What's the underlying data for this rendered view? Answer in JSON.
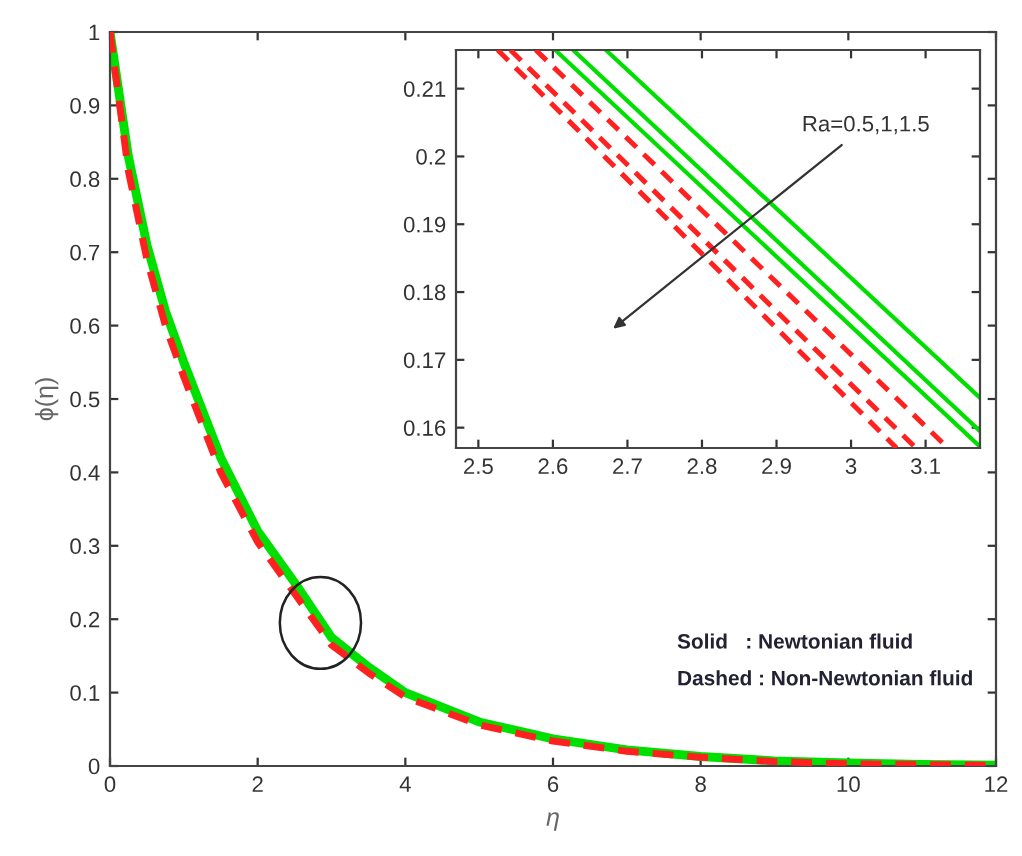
{
  "chart_data": [
    {
      "type": "line",
      "xlabel": "η",
      "ylabel": "ϕ(η)",
      "xlim": [
        0,
        12
      ],
      "ylim": [
        0,
        1
      ],
      "xticks": [
        0,
        2,
        4,
        6,
        8,
        10,
        12
      ],
      "yticks": [
        0,
        0.1,
        0.2,
        0.3,
        0.4,
        0.5,
        0.6,
        0.7,
        0.8,
        0.9,
        1
      ],
      "series": [
        {
          "color": "#00e000",
          "line_style": "solid",
          "x": [
            0,
            0.25,
            0.5,
            0.75,
            1,
            1.5,
            2,
            2.5,
            3,
            3.5,
            4,
            5,
            6,
            7,
            8,
            9,
            10,
            11,
            12
          ],
          "values": [
            1,
            0.83,
            0.71,
            0.62,
            0.55,
            0.42,
            0.32,
            0.25,
            0.175,
            0.135,
            0.1,
            0.06,
            0.037,
            0.022,
            0.013,
            0.007,
            0.004,
            0.002,
            0.001
          ]
        },
        {
          "color": "#ff2020",
          "line_style": "dashed",
          "x": [
            0,
            0.25,
            0.5,
            0.75,
            1,
            1.5,
            2,
            2.5,
            3,
            3.5,
            4,
            5,
            6,
            7,
            8,
            9,
            10,
            11,
            12
          ],
          "values": [
            1,
            0.81,
            0.69,
            0.6,
            0.53,
            0.4,
            0.305,
            0.235,
            0.165,
            0.127,
            0.094,
            0.056,
            0.034,
            0.02,
            0.012,
            0.006,
            0.003,
            0.002,
            0.001
          ]
        }
      ],
      "annotations": [
        "Solid   : Newtonian fluid",
        "Dashed : Non-Newtonian fluid"
      ]
    },
    {
      "type": "line",
      "xlim": [
        2.47,
        3.173
      ],
      "ylim": [
        0.157,
        0.2157
      ],
      "xticks": [
        2.5,
        2.6,
        2.7,
        2.8,
        2.9,
        3,
        3.1
      ],
      "yticks": [
        0.16,
        0.17,
        0.18,
        0.19,
        0.2,
        0.21
      ],
      "series": [
        {
          "color": "#00e000",
          "line_style": "solid",
          "x": [
            2.603,
            3.173
          ],
          "values": [
            0.2157,
            0.1572
          ]
        },
        {
          "color": "#00e000",
          "line_style": "solid",
          "x": [
            2.627,
            3.173
          ],
          "values": [
            0.2157,
            0.1595
          ]
        },
        {
          "color": "#00e000",
          "line_style": "solid",
          "x": [
            2.671,
            3.173
          ],
          "values": [
            0.2157,
            0.1644
          ]
        },
        {
          "color": "#ff2020",
          "line_style": "dashed",
          "x": [
            2.526,
            3.061
          ],
          "values": [
            0.2157,
            0.157
          ]
        },
        {
          "color": "#ff2020",
          "line_style": "dashed",
          "x": [
            2.543,
            3.087
          ],
          "values": [
            0.2157,
            0.157
          ]
        },
        {
          "color": "#ff2020",
          "line_style": "dashed",
          "x": [
            2.577,
            3.13
          ],
          "values": [
            0.2157,
            0.157
          ]
        }
      ],
      "annotations": [
        "Ra=0.5,1,1.5"
      ]
    }
  ]
}
